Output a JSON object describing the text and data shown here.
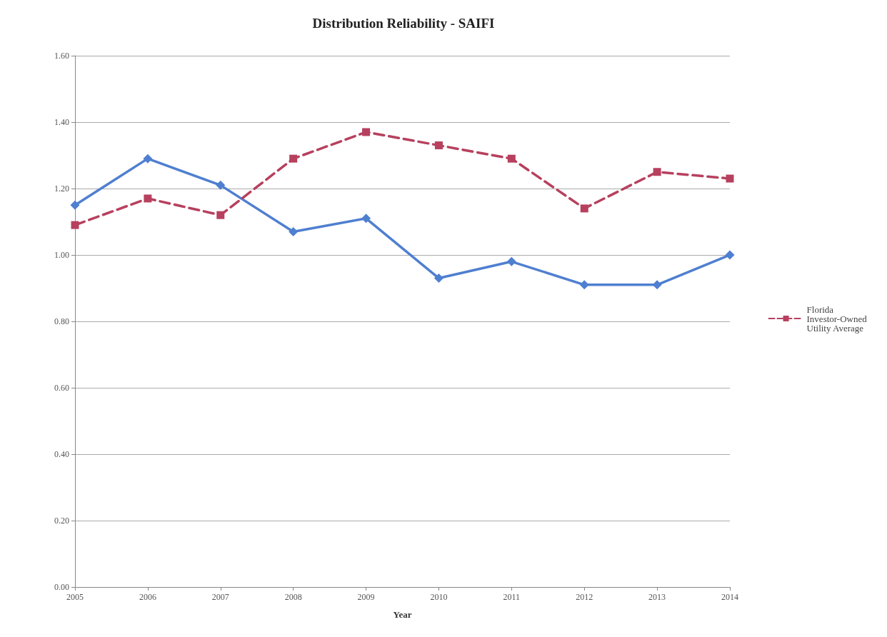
{
  "chart_data": {
    "type": "line",
    "title": "Distribution Reliability - SAIFI",
    "xlabel": "Year",
    "categories": [
      "2005",
      "2006",
      "2007",
      "2008",
      "2009",
      "2010",
      "2011",
      "2012",
      "2013",
      "2014"
    ],
    "series": [
      {
        "color": "#4f7fd0",
        "marker": "diamond",
        "line_style": "solid",
        "values": [
          1.15,
          1.29,
          1.21,
          1.07,
          1.11,
          0.93,
          0.98,
          0.91,
          0.91,
          1.0
        ]
      },
      {
        "name": "Florida Investor-Owned Utility Average",
        "color": "#b7405e",
        "marker": "square",
        "line_style": "dashed",
        "values": [
          1.09,
          1.17,
          1.12,
          1.29,
          1.37,
          1.33,
          1.29,
          1.14,
          1.25,
          1.23
        ]
      }
    ],
    "ylim": [
      0,
      1.6
    ],
    "yticks": [
      {
        "value": 0,
        "label": "0.00"
      },
      {
        "value": 0.2,
        "label": "0.20"
      },
      {
        "value": 0.4,
        "label": "0.40"
      },
      {
        "value": 0.6,
        "label": "0.60"
      },
      {
        "value": 0.8,
        "label": "0.80"
      },
      {
        "value": 1,
        "label": "1.00"
      },
      {
        "value": 1.2,
        "label": "1.20"
      },
      {
        "value": 1.4,
        "label": "1.40"
      },
      {
        "value": 1.6,
        "label": "1.60"
      }
    ],
    "grid": "y",
    "legend": "right"
  }
}
